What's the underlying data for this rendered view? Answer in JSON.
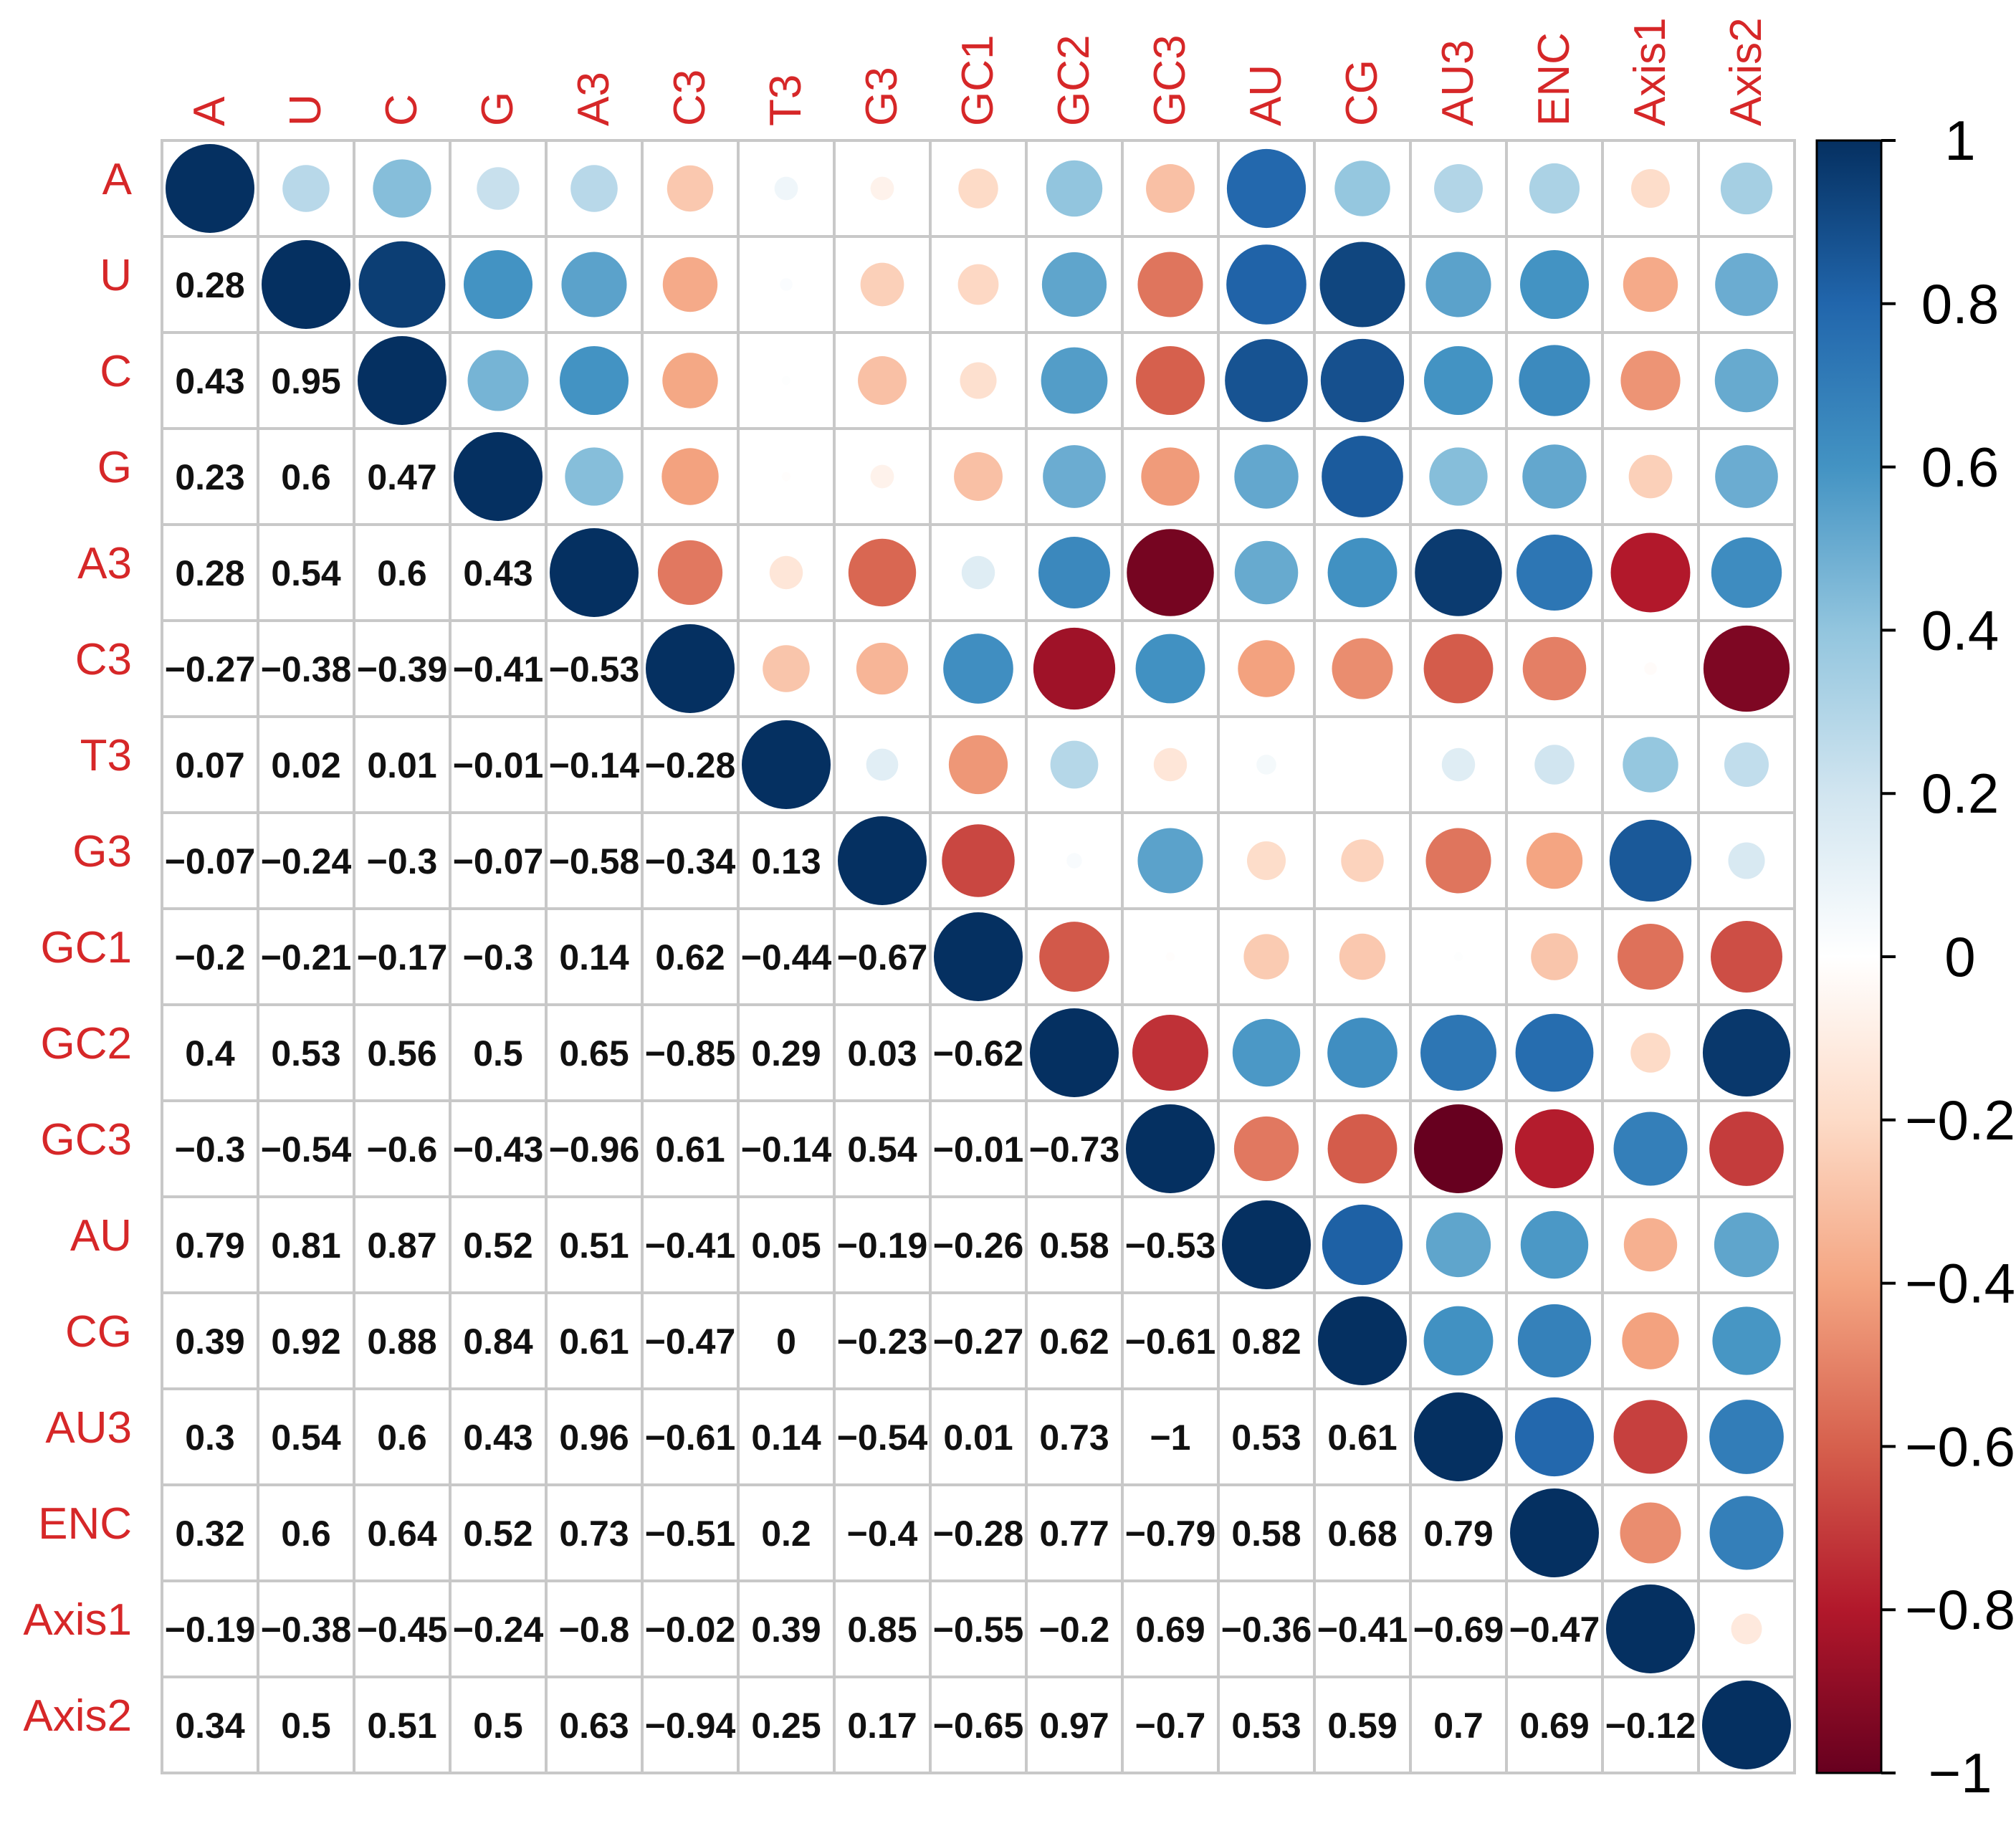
{
  "chart_data": {
    "type": "heatmap",
    "subtype": "correlation-matrix",
    "title": "",
    "variables": [
      "A",
      "U",
      "C",
      "G",
      "A3",
      "C3",
      "T3",
      "G3",
      "GC1",
      "GC2",
      "GC3",
      "AU",
      "CG",
      "AU3",
      "ENC",
      "Axis1",
      "Axis2"
    ],
    "lower_triangle_display": "numbers",
    "upper_triangle_display": "circles",
    "matrix": [
      [
        1,
        0.28,
        0.43,
        0.23,
        0.28,
        -0.27,
        0.07,
        -0.07,
        -0.2,
        0.4,
        -0.3,
        0.79,
        0.39,
        0.3,
        0.32,
        -0.19,
        0.34
      ],
      [
        0.28,
        1,
        0.95,
        0.6,
        0.54,
        -0.38,
        0.02,
        -0.24,
        -0.21,
        0.53,
        -0.54,
        0.81,
        0.92,
        0.54,
        0.6,
        -0.38,
        0.5
      ],
      [
        0.43,
        0.95,
        1,
        0.47,
        0.6,
        -0.39,
        0.01,
        -0.3,
        -0.17,
        0.56,
        -0.6,
        0.87,
        0.88,
        0.6,
        0.64,
        -0.45,
        0.51
      ],
      [
        0.23,
        0.6,
        0.47,
        1,
        0.43,
        -0.41,
        -0.01,
        -0.07,
        -0.3,
        0.5,
        -0.43,
        0.52,
        0.84,
        0.43,
        0.52,
        -0.24,
        0.5
      ],
      [
        0.28,
        0.54,
        0.6,
        0.43,
        1,
        -0.53,
        -0.14,
        -0.58,
        0.14,
        0.65,
        -0.96,
        0.51,
        0.61,
        0.96,
        0.73,
        -0.8,
        0.63
      ],
      [
        -0.27,
        -0.38,
        -0.39,
        -0.41,
        -0.53,
        1,
        -0.28,
        -0.34,
        0.62,
        -0.85,
        0.61,
        -0.41,
        -0.47,
        -0.61,
        -0.51,
        -0.02,
        -0.94
      ],
      [
        0.07,
        0.02,
        0.01,
        -0.01,
        -0.14,
        -0.28,
        1,
        0.13,
        -0.44,
        0.29,
        -0.14,
        0.05,
        0,
        0.14,
        0.2,
        0.39,
        0.25
      ],
      [
        -0.07,
        -0.24,
        -0.3,
        -0.07,
        -0.58,
        -0.34,
        0.13,
        1,
        -0.67,
        0.03,
        0.54,
        -0.19,
        -0.23,
        -0.54,
        -0.4,
        0.85,
        0.17
      ],
      [
        -0.2,
        -0.21,
        -0.17,
        -0.3,
        0.14,
        0.62,
        -0.44,
        -0.67,
        1,
        -0.62,
        -0.01,
        -0.26,
        -0.27,
        0.01,
        -0.28,
        -0.55,
        -0.65
      ],
      [
        0.4,
        0.53,
        0.56,
        0.5,
        0.65,
        -0.85,
        0.29,
        0.03,
        -0.62,
        1,
        -0.73,
        0.58,
        0.62,
        0.73,
        0.77,
        -0.2,
        0.97
      ],
      [
        -0.3,
        -0.54,
        -0.6,
        -0.43,
        -0.96,
        0.61,
        -0.14,
        0.54,
        -0.01,
        -0.73,
        1,
        -0.53,
        -0.61,
        -1,
        -0.79,
        0.69,
        -0.7
      ],
      [
        0.79,
        0.81,
        0.87,
        0.52,
        0.51,
        -0.41,
        0.05,
        -0.19,
        -0.26,
        0.58,
        -0.53,
        1,
        0.82,
        0.53,
        0.58,
        -0.36,
        0.53
      ],
      [
        0.39,
        0.92,
        0.88,
        0.84,
        0.61,
        -0.47,
        0,
        -0.23,
        -0.27,
        0.62,
        -0.61,
        0.82,
        1,
        0.61,
        0.68,
        -0.41,
        0.59
      ],
      [
        0.3,
        0.54,
        0.6,
        0.43,
        0.96,
        -0.61,
        0.14,
        -0.54,
        0.01,
        0.73,
        -1,
        0.53,
        0.61,
        1,
        0.79,
        -0.69,
        0.7
      ],
      [
        0.32,
        0.6,
        0.64,
        0.52,
        0.73,
        -0.51,
        0.2,
        -0.4,
        -0.28,
        0.77,
        -0.79,
        0.58,
        0.68,
        0.79,
        1,
        -0.47,
        0.69
      ],
      [
        -0.19,
        -0.38,
        -0.45,
        -0.24,
        -0.8,
        -0.02,
        0.39,
        0.85,
        -0.55,
        -0.2,
        0.69,
        -0.36,
        -0.41,
        -0.69,
        -0.47,
        1,
        -0.12
      ],
      [
        0.34,
        0.5,
        0.51,
        0.5,
        0.63,
        -0.94,
        0.25,
        0.17,
        -0.65,
        0.97,
        -0.7,
        0.53,
        0.59,
        0.7,
        0.69,
        -0.12,
        1
      ]
    ],
    "color_scale": {
      "range": [
        -1,
        1
      ],
      "ticks": [
        1,
        0.8,
        0.6,
        0.4,
        0.2,
        0,
        -0.2,
        -0.4,
        -0.6,
        -0.8,
        -1
      ],
      "tick_labels": [
        "1",
        "0.8",
        "0.6",
        "0.4",
        "0.2",
        "0",
        "−0.2",
        "−0.4",
        "−0.6",
        "−0.8",
        "−1"
      ],
      "palette_stops": [
        "#67001f",
        "#b2182b",
        "#d6604d",
        "#f4a582",
        "#fddbc7",
        "#ffffff",
        "#d1e5f0",
        "#92c5de",
        "#4393c3",
        "#2166ac",
        "#053061"
      ]
    },
    "label_color": "#d62728"
  }
}
